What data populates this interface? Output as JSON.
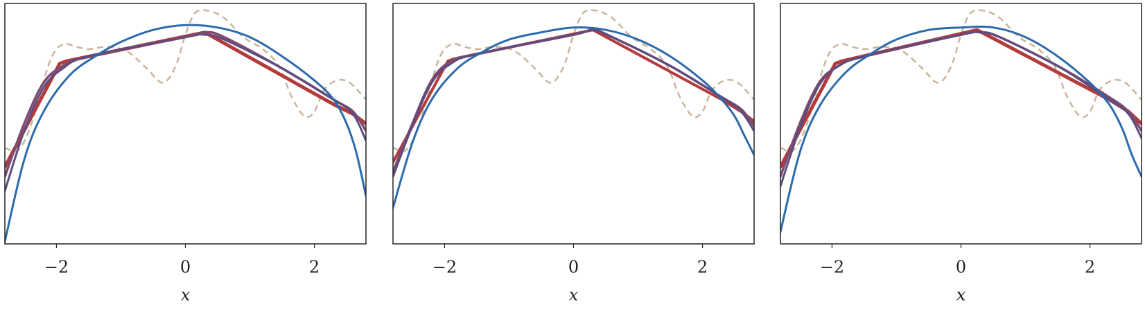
{
  "chart_data": [
    {
      "type": "line",
      "xlabel": "x",
      "xlim": [
        -2.8,
        2.8
      ],
      "ylim": [
        0,
        1
      ],
      "xticks": [
        {
          "value": -2,
          "label": "−2"
        },
        0,
        2
      ],
      "series": [
        {
          "color": "#c9b59b",
          "dashed": true,
          "smooth": true,
          "x": [
            -2.8,
            -2.6,
            -2.4,
            -2.1,
            -1.9,
            -1.7,
            -1.5,
            -1.2,
            -0.9,
            -0.6,
            -0.35,
            -0.15,
            0,
            0.15,
            0.35,
            0.6,
            0.9,
            1.2,
            1.45,
            1.65,
            1.85,
            2.0,
            2.15,
            2.35,
            2.55,
            2.8
          ],
          "values": [
            0.4,
            0.39,
            0.49,
            0.76,
            0.83,
            0.82,
            0.81,
            0.82,
            0.8,
            0.73,
            0.67,
            0.74,
            0.87,
            0.96,
            0.97,
            0.94,
            0.86,
            0.81,
            0.74,
            0.61,
            0.53,
            0.55,
            0.64,
            0.68,
            0.67,
            0.6
          ]
        },
        {
          "color": "#b23b3b",
          "width": 5,
          "smooth": false,
          "x": [
            -2.8,
            -1.95,
            -1.85,
            0.3,
            2.3,
            2.6,
            2.8
          ],
          "values": [
            0.32,
            0.75,
            0.76,
            0.88,
            0.58,
            0.54,
            0.5
          ]
        },
        {
          "color": "#7e4b6f",
          "width": 3.5,
          "smooth": true,
          "x": [
            -2.8,
            -2.5,
            -2.2,
            -1.9,
            -1.5,
            0,
            0.3,
            0.6,
            1.5,
            2.3,
            2.6,
            2.8
          ],
          "values": [
            0.28,
            0.5,
            0.67,
            0.74,
            0.78,
            0.86,
            0.88,
            0.86,
            0.73,
            0.6,
            0.55,
            0.47
          ]
        },
        {
          "color": "#5e4b7f",
          "width": 3,
          "smooth": true,
          "x": [
            -2.8,
            -2.5,
            -2.2,
            -1.9,
            -1.5,
            0,
            0.3,
            0.6,
            1.5,
            2.3,
            2.6,
            2.8
          ],
          "values": [
            0.22,
            0.47,
            0.65,
            0.73,
            0.78,
            0.86,
            0.87,
            0.85,
            0.73,
            0.6,
            0.54,
            0.43
          ]
        },
        {
          "color": "#2b6aac",
          "width": 3,
          "smooth": true,
          "x": [
            -2.8,
            -2.5,
            -2.2,
            -1.8,
            -1.4,
            -1.0,
            -0.5,
            0,
            0.5,
            1.0,
            1.5,
            2.0,
            2.3,
            2.5,
            2.65,
            2.8
          ],
          "values": [
            0.01,
            0.35,
            0.55,
            0.7,
            0.78,
            0.84,
            0.89,
            0.91,
            0.9,
            0.86,
            0.78,
            0.68,
            0.6,
            0.5,
            0.38,
            0.2
          ]
        }
      ]
    },
    {
      "type": "line",
      "xlabel": "x",
      "xlim": [
        -2.8,
        2.8
      ],
      "ylim": [
        0,
        1
      ],
      "xticks": [
        {
          "value": -2,
          "label": "−2"
        },
        0,
        2
      ],
      "series": [
        {
          "color": "#c9b59b",
          "dashed": true,
          "smooth": true,
          "x": [
            -2.8,
            -2.6,
            -2.4,
            -2.1,
            -1.9,
            -1.7,
            -1.5,
            -1.2,
            -0.9,
            -0.6,
            -0.35,
            -0.15,
            0,
            0.15,
            0.35,
            0.6,
            0.9,
            1.2,
            1.45,
            1.65,
            1.85,
            2.0,
            2.15,
            2.35,
            2.55,
            2.8
          ],
          "values": [
            0.4,
            0.39,
            0.49,
            0.76,
            0.83,
            0.82,
            0.81,
            0.82,
            0.8,
            0.73,
            0.67,
            0.74,
            0.87,
            0.96,
            0.97,
            0.94,
            0.86,
            0.81,
            0.74,
            0.61,
            0.53,
            0.55,
            0.64,
            0.68,
            0.67,
            0.6
          ]
        },
        {
          "color": "#b23b3b",
          "width": 4,
          "smooth": false,
          "x": [
            -2.8,
            -1.95,
            -1.85,
            0.3,
            2.3,
            2.6,
            2.8
          ],
          "values": [
            0.34,
            0.76,
            0.77,
            0.89,
            0.6,
            0.55,
            0.51
          ]
        },
        {
          "color": "#7e4b6f",
          "width": 3.5,
          "smooth": true,
          "x": [
            -2.8,
            -2.5,
            -2.2,
            -1.9,
            -1.5,
            0,
            0.3,
            0.6,
            1.5,
            2.3,
            2.6,
            2.8
          ],
          "values": [
            0.3,
            0.5,
            0.68,
            0.76,
            0.79,
            0.87,
            0.89,
            0.86,
            0.74,
            0.61,
            0.56,
            0.49
          ]
        },
        {
          "color": "#5e4b7f",
          "width": 3,
          "smooth": true,
          "x": [
            -2.8,
            -2.5,
            -2.2,
            -1.9,
            -1.5,
            0,
            0.3,
            0.6,
            1.5,
            2.3,
            2.6,
            2.8
          ],
          "values": [
            0.28,
            0.49,
            0.67,
            0.75,
            0.79,
            0.87,
            0.89,
            0.86,
            0.74,
            0.61,
            0.55,
            0.47
          ]
        },
        {
          "color": "#2b6aac",
          "width": 3,
          "smooth": true,
          "x": [
            -2.8,
            -2.5,
            -2.2,
            -1.8,
            -1.4,
            -1.0,
            -0.5,
            0,
            0.5,
            1.0,
            1.5,
            2.0,
            2.3,
            2.5,
            2.65,
            2.8
          ],
          "values": [
            0.15,
            0.42,
            0.6,
            0.73,
            0.8,
            0.85,
            0.88,
            0.9,
            0.89,
            0.85,
            0.78,
            0.68,
            0.6,
            0.53,
            0.45,
            0.37
          ]
        }
      ]
    },
    {
      "type": "line",
      "xlabel": "x",
      "xlim": [
        -2.8,
        2.8
      ],
      "ylim": [
        0,
        1
      ],
      "xticks": [
        {
          "value": -2,
          "label": "−2"
        },
        0,
        2
      ],
      "series": [
        {
          "color": "#c9b59b",
          "dashed": true,
          "smooth": true,
          "x": [
            -2.8,
            -2.6,
            -2.4,
            -2.1,
            -1.9,
            -1.7,
            -1.5,
            -1.2,
            -0.9,
            -0.6,
            -0.35,
            -0.15,
            0,
            0.15,
            0.35,
            0.6,
            0.9,
            1.2,
            1.45,
            1.65,
            1.85,
            2.0,
            2.15,
            2.35,
            2.55,
            2.8
          ],
          "values": [
            0.4,
            0.39,
            0.49,
            0.76,
            0.83,
            0.82,
            0.81,
            0.82,
            0.8,
            0.73,
            0.67,
            0.74,
            0.87,
            0.96,
            0.97,
            0.94,
            0.86,
            0.81,
            0.74,
            0.61,
            0.53,
            0.55,
            0.64,
            0.68,
            0.67,
            0.6
          ]
        },
        {
          "color": "#b23b3b",
          "width": 5,
          "smooth": false,
          "x": [
            -2.8,
            -1.95,
            -1.85,
            0.25,
            2.3,
            2.6,
            2.8
          ],
          "values": [
            0.32,
            0.75,
            0.76,
            0.89,
            0.6,
            0.55,
            0.5
          ]
        },
        {
          "color": "#7e4b6f",
          "width": 3.5,
          "smooth": true,
          "x": [
            -2.8,
            -2.5,
            -2.2,
            -1.9,
            -1.5,
            0,
            0.3,
            0.6,
            1.5,
            2.3,
            2.6,
            2.8
          ],
          "values": [
            0.28,
            0.5,
            0.67,
            0.74,
            0.78,
            0.87,
            0.88,
            0.86,
            0.74,
            0.61,
            0.55,
            0.47
          ]
        },
        {
          "color": "#5e4b7f",
          "width": 3,
          "smooth": true,
          "x": [
            -2.8,
            -2.5,
            -2.2,
            -1.9,
            -1.5,
            0,
            0.3,
            0.6,
            1.5,
            2.3,
            2.6,
            2.8
          ],
          "values": [
            0.24,
            0.48,
            0.66,
            0.74,
            0.78,
            0.87,
            0.88,
            0.86,
            0.74,
            0.6,
            0.54,
            0.44
          ]
        },
        {
          "color": "#2b6aac",
          "width": 3,
          "smooth": true,
          "x": [
            -2.8,
            -2.5,
            -2.2,
            -1.8,
            -1.4,
            -1.0,
            -0.5,
            0,
            0.5,
            1.0,
            1.5,
            2.0,
            2.3,
            2.5,
            2.65,
            2.8
          ],
          "values": [
            0.05,
            0.38,
            0.57,
            0.71,
            0.79,
            0.85,
            0.89,
            0.9,
            0.9,
            0.86,
            0.78,
            0.67,
            0.58,
            0.48,
            0.37,
            0.28
          ]
        }
      ]
    }
  ]
}
